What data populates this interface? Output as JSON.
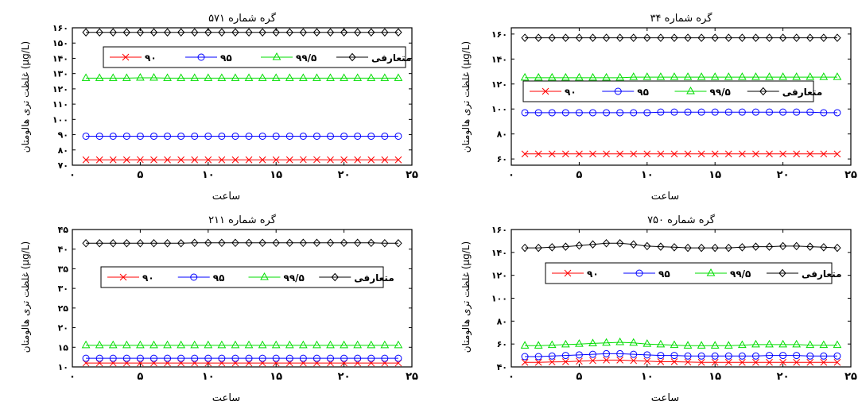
{
  "figure": {
    "ylabel": "غلظت تری هالومتان (μg/L)",
    "xlabel": "ساعت"
  },
  "chart_data": [
    {
      "type": "line",
      "title": "گره شماره ۵۷۱",
      "xlabel": "ساعت",
      "ylabel": "غلظت تری هالومتان (μg/L)",
      "xlim": [
        0,
        25
      ],
      "ylim": [
        70,
        160
      ],
      "xticks": [
        0,
        5,
        10,
        15,
        20,
        25
      ],
      "xtick_labels": [
        "۰",
        "۵",
        "۱۰",
        "۱۵",
        "۲۰",
        "۲۵"
      ],
      "yticks": [
        70,
        80,
        90,
        100,
        110,
        120,
        130,
        140,
        150,
        160
      ],
      "ytick_labels": [
        "۷۰",
        "۸۰",
        "۹۰",
        "۱۰۰",
        "۱۱۰",
        "۱۲۰",
        "۱۳۰",
        "۱۴۰",
        "۱۵۰",
        "۱۶۰"
      ],
      "grid": false,
      "legend_position": "top",
      "x": [
        1,
        2,
        3,
        4,
        5,
        6,
        7,
        8,
        9,
        10,
        11,
        12,
        13,
        14,
        15,
        16,
        17,
        18,
        19,
        20,
        21,
        22,
        23,
        24
      ],
      "series": [
        {
          "name": "۹۰",
          "color": "#ff0000",
          "marker": "x",
          "values": [
            73.5,
            73.5,
            73.5,
            73.5,
            73.6,
            73.5,
            73.5,
            73.5,
            73.5,
            73.5,
            73.5,
            73.5,
            73.5,
            73.5,
            73.5,
            73.5,
            73.6,
            73.6,
            73.5,
            73.5,
            73.5,
            73.5,
            73.5,
            73.5
          ]
        },
        {
          "name": "۹۵",
          "color": "#0000ff",
          "marker": "circle",
          "values": [
            89,
            89,
            89,
            89,
            89,
            89,
            89,
            89,
            89,
            89,
            89,
            89,
            89,
            89,
            89,
            89,
            89,
            89,
            89,
            89,
            89,
            89,
            89,
            89
          ]
        },
        {
          "name": "۹۹/۵",
          "color": "#00dd00",
          "marker": "triangle",
          "values": [
            127,
            127,
            127,
            127,
            127.2,
            127.2,
            127,
            127,
            127,
            127,
            127,
            127,
            127,
            127,
            127,
            127,
            127,
            127,
            127,
            127,
            127,
            127,
            127,
            127
          ]
        },
        {
          "name": "متعارفی",
          "color": "#000000",
          "marker": "diamond",
          "values": [
            157,
            157,
            157,
            157,
            157,
            157,
            157,
            157,
            157,
            157,
            157,
            157,
            157,
            157,
            157,
            157,
            157,
            157,
            157,
            157,
            157,
            157,
            157,
            157
          ]
        }
      ]
    },
    {
      "type": "line",
      "title": "گره شماره ۳۴",
      "xlabel": "ساعت",
      "ylabel": "غلظت تری هالومتان (μg/L)",
      "xlim": [
        0,
        25
      ],
      "ylim": [
        55,
        165
      ],
      "xticks": [
        0,
        5,
        10,
        15,
        20,
        25
      ],
      "xtick_labels": [
        "۰",
        "۵",
        "۱۰",
        "۱۵",
        "۲۰",
        "۲۵"
      ],
      "yticks": [
        60,
        80,
        100,
        120,
        140,
        160
      ],
      "ytick_labels": [
        "۶۰",
        "۸۰",
        "۱۰۰",
        "۱۲۰",
        "۱۴۰",
        "۱۶۰"
      ],
      "grid": false,
      "legend_position": "center",
      "x": [
        1,
        2,
        3,
        4,
        5,
        6,
        7,
        8,
        9,
        10,
        11,
        12,
        13,
        14,
        15,
        16,
        17,
        18,
        19,
        20,
        21,
        22,
        23,
        24
      ],
      "series": [
        {
          "name": "۹۰",
          "color": "#ff0000",
          "marker": "x",
          "values": [
            64,
            64,
            64,
            64,
            64,
            64,
            64,
            64,
            64,
            64,
            64,
            64,
            64,
            64,
            64,
            64,
            64,
            64,
            64,
            64,
            64,
            64,
            64,
            64
          ]
        },
        {
          "name": "۹۵",
          "color": "#0000ff",
          "marker": "circle",
          "values": [
            97,
            97,
            97,
            97,
            97,
            97,
            97,
            97,
            97,
            97,
            97.5,
            97.5,
            97.5,
            97.5,
            97.5,
            97.5,
            97.5,
            97.5,
            97.5,
            97.5,
            97.5,
            97.5,
            97,
            97
          ]
        },
        {
          "name": "۹۹/۵",
          "color": "#00dd00",
          "marker": "triangle",
          "values": [
            125,
            125,
            125,
            125,
            125,
            125,
            125,
            125,
            125.5,
            125.5,
            125.5,
            125.5,
            125.5,
            125.5,
            125.5,
            125.5,
            125.5,
            125.5,
            125.5,
            125.5,
            125.5,
            125.5,
            125.5,
            125.5
          ]
        },
        {
          "name": "متعارفی",
          "color": "#000000",
          "marker": "diamond",
          "values": [
            157,
            157,
            157,
            157,
            157,
            157,
            157,
            157,
            157,
            157,
            157,
            157,
            157,
            157,
            157,
            157,
            157,
            157,
            157,
            157,
            157,
            157,
            157,
            157
          ]
        }
      ]
    },
    {
      "type": "line",
      "title": "گره شماره ۲۱۱",
      "xlabel": "ساعت",
      "ylabel": "غلظت تری هالومتان (μg/L)",
      "xlim": [
        0,
        25
      ],
      "ylim": [
        10,
        45
      ],
      "xticks": [
        0,
        5,
        10,
        15,
        20,
        25
      ],
      "xtick_labels": [
        "۰",
        "۵",
        "۱۰",
        "۱۵",
        "۲۰",
        "۲۵"
      ],
      "yticks": [
        10,
        15,
        20,
        25,
        30,
        35,
        40,
        45
      ],
      "ytick_labels": [
        "۱۰",
        "۱۵",
        "۲۰",
        "۲۵",
        "۳۰",
        "۳۵",
        "۴۰",
        "۴۵"
      ],
      "grid": false,
      "legend_position": "center",
      "x": [
        1,
        2,
        3,
        4,
        5,
        6,
        7,
        8,
        9,
        10,
        11,
        12,
        13,
        14,
        15,
        16,
        17,
        18,
        19,
        20,
        21,
        22,
        23,
        24
      ],
      "series": [
        {
          "name": "۹۰",
          "color": "#ff0000",
          "marker": "x",
          "values": [
            11,
            11,
            11,
            11,
            11,
            11,
            11,
            11,
            11,
            11,
            11,
            11,
            11,
            11,
            11,
            11,
            11,
            11,
            11,
            11,
            11,
            11,
            11,
            11
          ]
        },
        {
          "name": "۹۵",
          "color": "#0000ff",
          "marker": "circle",
          "values": [
            12.2,
            12.2,
            12.2,
            12.2,
            12.2,
            12.2,
            12.2,
            12.2,
            12.2,
            12.2,
            12.2,
            12.2,
            12.2,
            12.2,
            12.2,
            12.2,
            12.2,
            12.2,
            12.2,
            12.2,
            12.2,
            12.2,
            12.2,
            12.2
          ]
        },
        {
          "name": "۹۹/۵",
          "color": "#00dd00",
          "marker": "triangle",
          "values": [
            15.5,
            15.5,
            15.5,
            15.5,
            15.5,
            15.5,
            15.5,
            15.5,
            15.5,
            15.5,
            15.5,
            15.5,
            15.5,
            15.5,
            15.5,
            15.5,
            15.5,
            15.5,
            15.5,
            15.5,
            15.5,
            15.5,
            15.5,
            15.5
          ]
        },
        {
          "name": "متعارفی",
          "color": "#000000",
          "marker": "diamond",
          "values": [
            41.5,
            41.5,
            41.5,
            41.5,
            41.5,
            41.5,
            41.5,
            41.5,
            41.6,
            41.6,
            41.6,
            41.6,
            41.6,
            41.6,
            41.6,
            41.6,
            41.6,
            41.6,
            41.6,
            41.6,
            41.6,
            41.6,
            41.5,
            41.5
          ]
        }
      ]
    },
    {
      "type": "line",
      "title": "گره شماره ۷۵۰",
      "xlabel": "ساعت",
      "ylabel": "غلظت تری هالومتان (μg/L)",
      "xlim": [
        0,
        25
      ],
      "ylim": [
        40,
        160
      ],
      "xticks": [
        0,
        5,
        10,
        15,
        20,
        25
      ],
      "xtick_labels": [
        "۰",
        "۵",
        "۱۰",
        "۱۵",
        "۲۰",
        "۲۵"
      ],
      "yticks": [
        40,
        60,
        80,
        100,
        120,
        140,
        160
      ],
      "ytick_labels": [
        "۴۰",
        "۶۰",
        "۸۰",
        "۱۰۰",
        "۱۲۰",
        "۱۴۰",
        "۱۶۰"
      ],
      "grid": false,
      "legend_position": "center",
      "x": [
        1,
        2,
        3,
        4,
        5,
        6,
        7,
        8,
        9,
        10,
        11,
        12,
        13,
        14,
        15,
        16,
        17,
        18,
        19,
        20,
        21,
        22,
        23,
        24
      ],
      "series": [
        {
          "name": "۹۰",
          "color": "#ff0000",
          "marker": "x",
          "values": [
            44,
            44,
            44.3,
            44.5,
            45,
            45.5,
            46,
            46,
            45.5,
            45,
            44.5,
            44.5,
            44.2,
            44,
            44,
            44,
            44,
            44,
            44,
            44,
            44,
            44,
            44,
            44
          ]
        },
        {
          "name": "۹۵",
          "color": "#0000ff",
          "marker": "circle",
          "values": [
            49,
            49,
            49.5,
            50,
            50.5,
            51,
            51.5,
            51.5,
            51,
            50.5,
            50,
            50,
            49.5,
            49.5,
            49.5,
            49.5,
            49.5,
            49.5,
            50,
            50,
            50,
            49.5,
            49.5,
            49.5
          ]
        },
        {
          "name": "۹۹/۵",
          "color": "#00dd00",
          "marker": "triangle",
          "values": [
            58.5,
            58.5,
            59,
            59.5,
            60,
            60.5,
            61,
            61.5,
            61,
            60,
            59.5,
            59,
            58.5,
            58.5,
            58.5,
            58.5,
            59,
            59.5,
            59.5,
            59.5,
            59.5,
            59,
            59,
            59
          ]
        },
        {
          "name": "متعارفی",
          "color": "#000000",
          "marker": "diamond",
          "values": [
            144,
            144,
            144.5,
            145,
            146,
            147,
            148,
            148,
            147,
            145.5,
            145,
            144.5,
            144,
            144,
            144,
            144,
            144.5,
            145,
            145,
            145.5,
            145.5,
            145,
            144.5,
            144
          ]
        }
      ]
    }
  ]
}
